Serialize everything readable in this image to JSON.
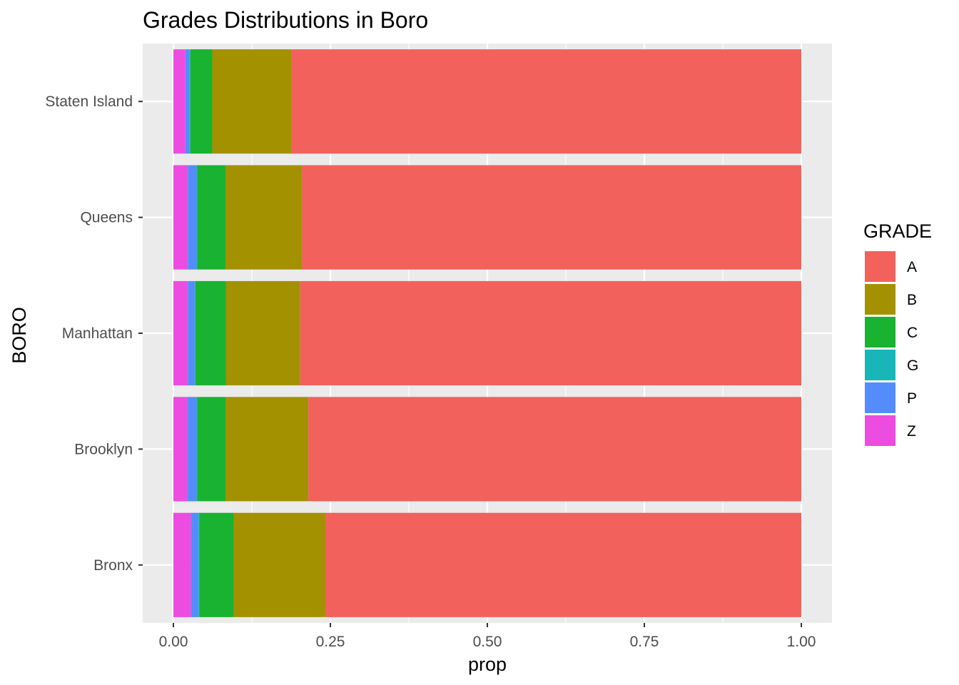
{
  "chart_data": {
    "type": "bar",
    "orientation": "horizontal",
    "stacked": true,
    "title": "Grades Distributions in Boro",
    "xlabel": "prop",
    "ylabel": "BORO",
    "xlim": [
      0,
      1
    ],
    "xticks": [
      "0.00",
      "0.25",
      "0.50",
      "0.75",
      "1.00"
    ],
    "grid": true,
    "legend_placement": "right",
    "categories": [
      "Bronx",
      "Brooklyn",
      "Manhattan",
      "Queens",
      "Staten Island"
    ],
    "series": [
      {
        "name": "A",
        "color": "#F2615C",
        "values": [
          0.758,
          0.785,
          0.798,
          0.795,
          0.812
        ]
      },
      {
        "name": "B",
        "color": "#A39100",
        "values": [
          0.146,
          0.132,
          0.118,
          0.122,
          0.126
        ]
      },
      {
        "name": "C",
        "color": "#19B231",
        "values": [
          0.055,
          0.045,
          0.049,
          0.045,
          0.035
        ]
      },
      {
        "name": "G",
        "color": "#18B6B8",
        "values": [
          0.001,
          0.001,
          0.001,
          0.001,
          0.001
        ]
      },
      {
        "name": "P",
        "color": "#548CFC",
        "values": [
          0.012,
          0.015,
          0.011,
          0.014,
          0.007
        ]
      },
      {
        "name": "Z",
        "color": "#ED4CE1",
        "values": [
          0.028,
          0.022,
          0.023,
          0.023,
          0.019
        ]
      }
    ]
  }
}
